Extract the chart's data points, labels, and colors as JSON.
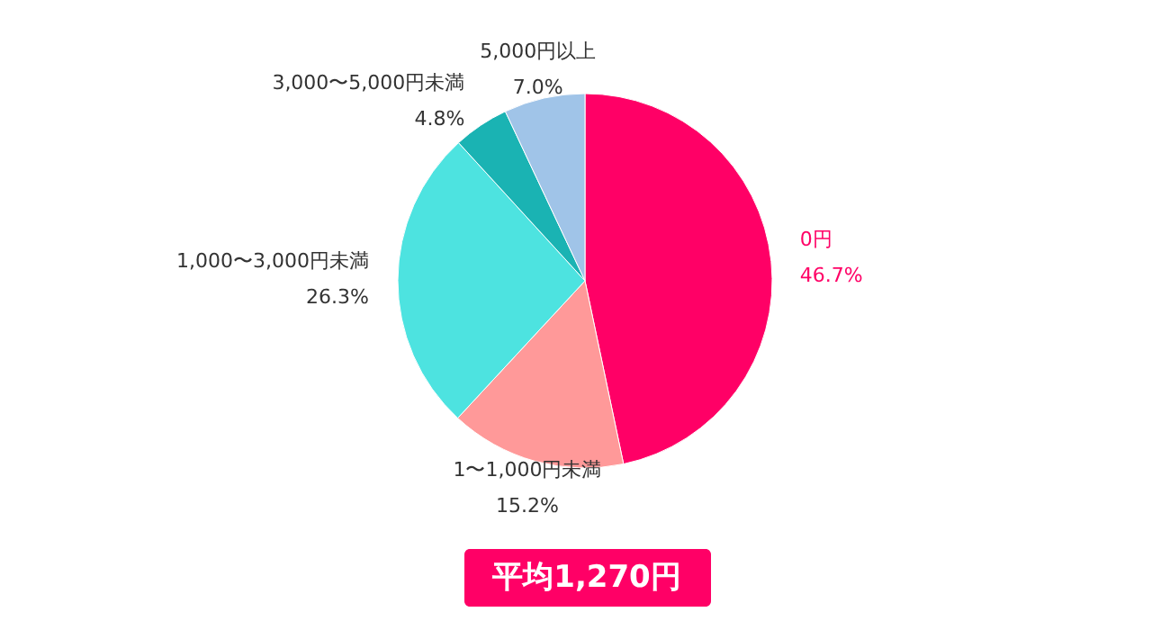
{
  "chart_data": {
    "type": "pie",
    "categories": [
      "0円",
      "1〜1,000円未満",
      "1,000〜3,000円未満",
      "3,000〜5,000円未満",
      "5,000円以上"
    ],
    "values": [
      46.7,
      15.2,
      26.3,
      4.8,
      7.0
    ],
    "colors": [
      "#ff0066",
      "#ff9999",
      "#4de3e0",
      "#1ab3b3",
      "#a0c4e8"
    ],
    "value_labels": [
      "46.7%",
      "15.2%",
      "26.3%",
      "4.8%",
      "7.0%"
    ],
    "annotations": [
      "平均1,270円"
    ]
  }
}
